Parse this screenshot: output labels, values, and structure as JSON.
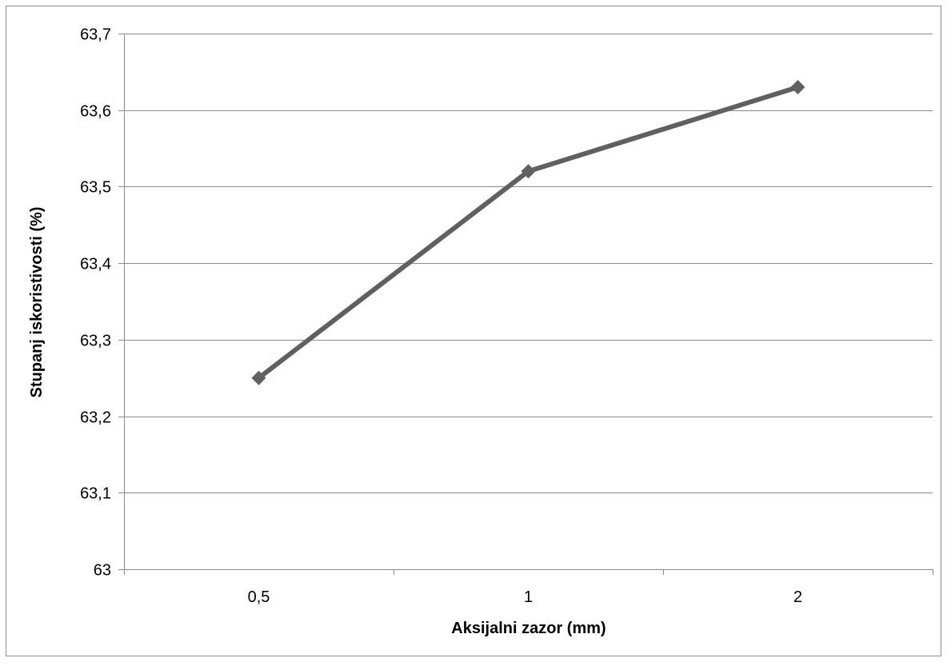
{
  "chart_data": {
    "type": "line",
    "title": "",
    "xlabel": "Aksijalni zazor (mm)",
    "ylabel": "Stupanj iskoristivosti (%)",
    "categories": [
      "0,5",
      "1",
      "2"
    ],
    "series": [
      {
        "values": [
          63.25,
          63.52,
          63.63
        ]
      }
    ],
    "ylim": [
      63,
      63.7
    ],
    "ytick_labels": [
      "63",
      "63,1",
      "63,2",
      "63,3",
      "63,4",
      "63,5",
      "63,6",
      "63,7"
    ],
    "grid": true,
    "legend": "none",
    "marker": "diamond",
    "line_color": "#606060",
    "grid_color": "#8c8c8c"
  }
}
